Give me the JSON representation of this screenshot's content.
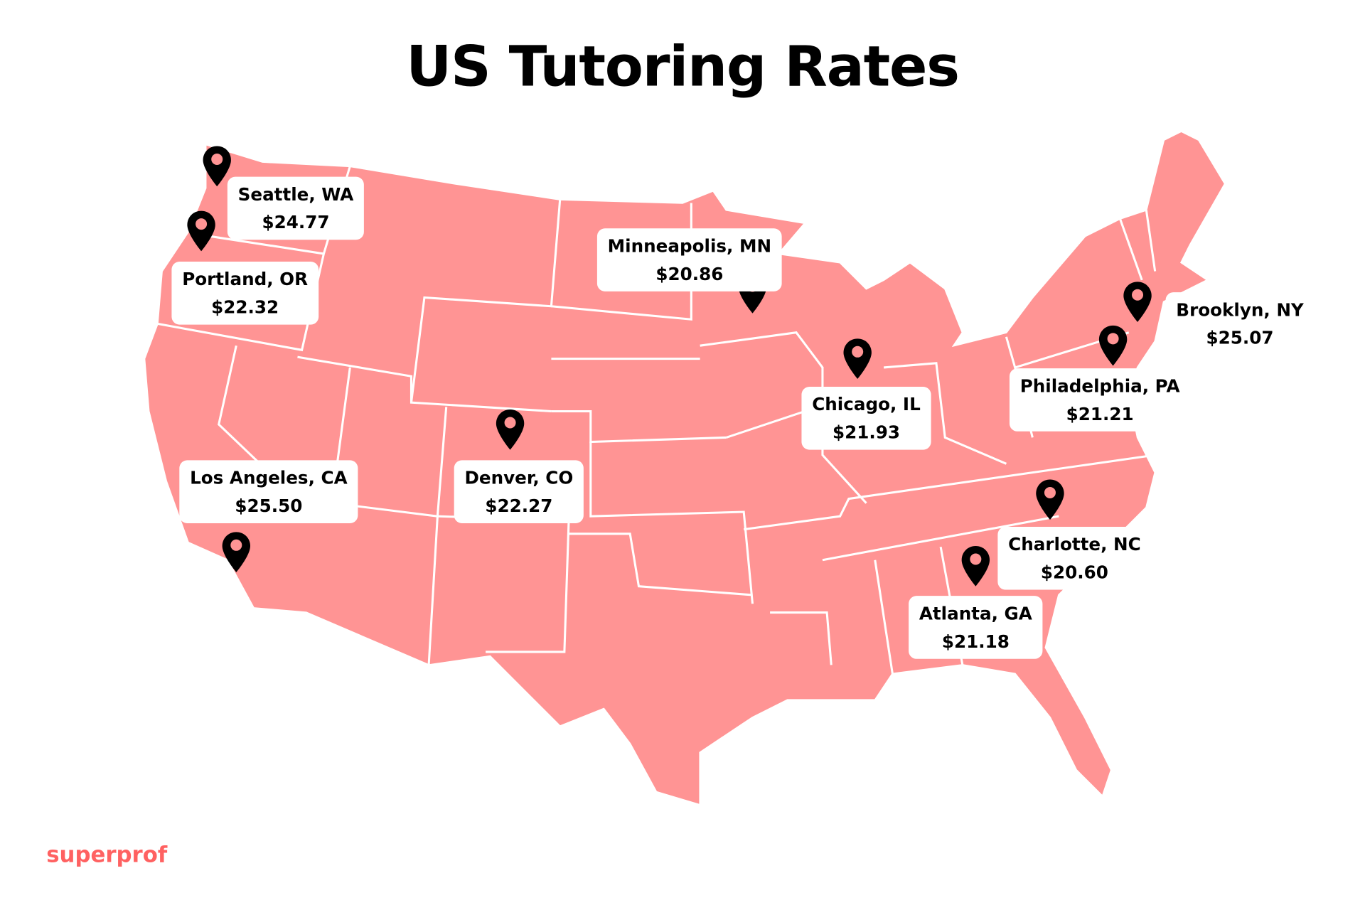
{
  "title": "US Tutoring Rates",
  "brand": "superprof",
  "colors": {
    "map_fill": "#FF9494",
    "border": "#FFFFFF",
    "pin": "#000000",
    "pin_dot": "#FF9494",
    "brand": "#FF6161"
  },
  "cities": [
    {
      "name": "Seattle, WA",
      "rate": "$24.77"
    },
    {
      "name": "Portland, OR",
      "rate": "$22.32"
    },
    {
      "name": "Los Angeles, CA",
      "rate": "$25.50"
    },
    {
      "name": "Denver, CO",
      "rate": "$22.27"
    },
    {
      "name": "Minneapolis, MN",
      "rate": "$20.86"
    },
    {
      "name": "Chicago, IL",
      "rate": "$21.93"
    },
    {
      "name": "Brooklyn, NY",
      "rate": "$25.07"
    },
    {
      "name": "Philadelphia, PA",
      "rate": "$21.21"
    },
    {
      "name": "Charlotte, NC",
      "rate": "$20.60"
    },
    {
      "name": "Atlanta, GA",
      "rate": "$21.18"
    }
  ]
}
